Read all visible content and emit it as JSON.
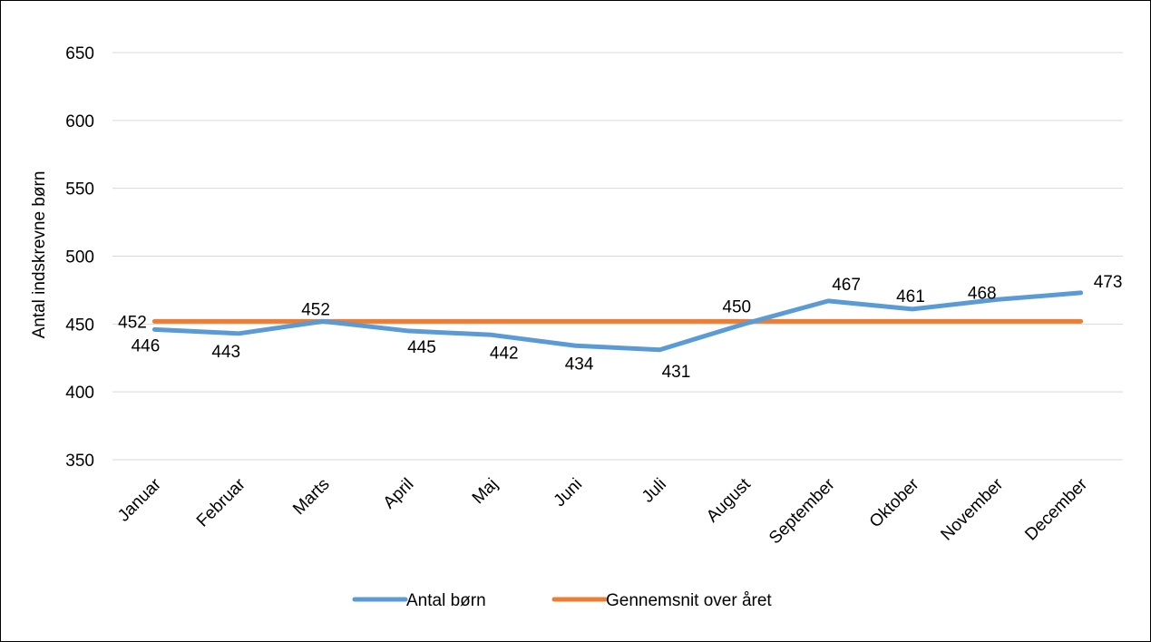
{
  "chart_data": {
    "type": "line",
    "categories": [
      "Januar",
      "Februar",
      "Marts",
      "April",
      "Maj",
      "Juni",
      "Juli",
      "August",
      "September",
      "Oktober",
      "November",
      "December"
    ],
    "series": [
      {
        "name": "Antal børn",
        "color": "#5b9bd5",
        "values": [
          446,
          443,
          452,
          445,
          442,
          434,
          431,
          450,
          467,
          461,
          468,
          473
        ],
        "labels": [
          "446",
          "443",
          "452",
          "445",
          "442",
          "434",
          "431",
          "450",
          "467",
          "461",
          "468",
          "473"
        ]
      },
      {
        "name": "Gennemsnit over året",
        "color": "#ed7d31",
        "values": [
          452,
          452,
          452,
          452,
          452,
          452,
          452,
          452,
          452,
          452,
          452,
          452
        ],
        "labels": [
          "452"
        ]
      }
    ],
    "xlabel": "",
    "ylabel": "Antal indskrevne børn",
    "ylim": [
      350,
      650
    ],
    "yticks": [
      "350",
      "400",
      "450",
      "500",
      "550",
      "600",
      "650"
    ],
    "grid": true,
    "legend": "bottom"
  }
}
